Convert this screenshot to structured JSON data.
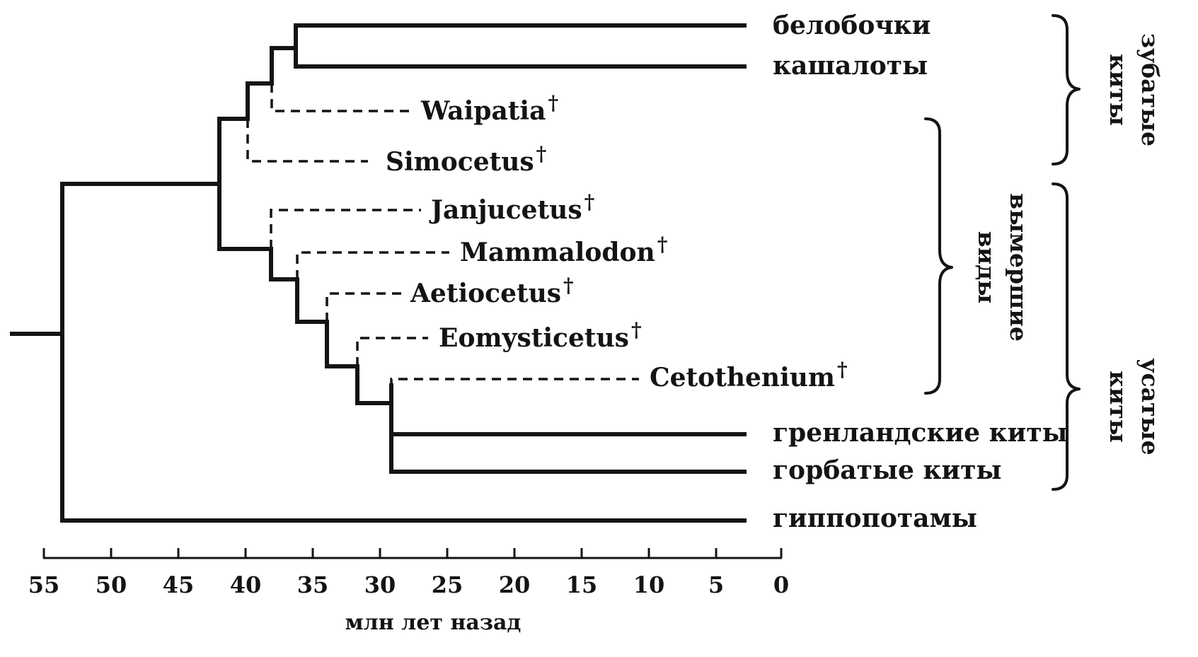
{
  "taxa": {
    "beluga": "белобочки",
    "sperm_whales": "кашалоты",
    "waipatia": "Waipatia",
    "simocetus": "Simocetus",
    "janjucetus": "Janjucetus",
    "mammalodon": "Mammalodon",
    "aetiocetus": "Aetiocetus",
    "eomysticetus": "Eomysticetus",
    "cetothenium": "Cetothenium",
    "bowhead_whales": "гренландские киты",
    "humpback_whales": "горбатые киты",
    "hippos": "гиппопотамы"
  },
  "extinct_marker": "†",
  "axis": {
    "title": "млн лет назад",
    "ticks": [
      "55",
      "50",
      "45",
      "40",
      "35",
      "30",
      "25",
      "20",
      "15",
      "10",
      "5",
      "0"
    ]
  },
  "groups": {
    "toothed": {
      "line1": "зубатые",
      "line2": "киты"
    },
    "extinct": {
      "line1": "вымершие",
      "line2": "виды"
    },
    "baleen": {
      "line1": "усатые",
      "line2": "киты"
    }
  }
}
